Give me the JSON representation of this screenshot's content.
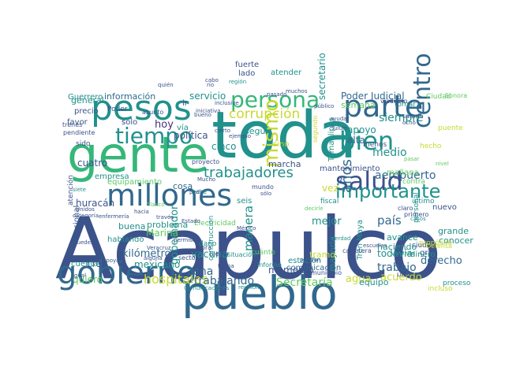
{
  "palette": {
    "navy": "#3b528b",
    "blue": "#31688e",
    "teal": "#21918c",
    "green": "#35b779",
    "lime": "#5ec962",
    "yellow": "#c8d932",
    "purple": "#472c7a",
    "dark": "#440154"
  },
  "words": [
    {
      "text": "Acapulco",
      "color": "navy"
    },
    {
      "text": "toda",
      "color": "teal"
    },
    {
      "text": "pueblo",
      "color": "blue"
    },
    {
      "text": "gente",
      "color": "green"
    },
    {
      "text": "millones",
      "color": "blue"
    },
    {
      "text": "gobierno",
      "color": "blue"
    },
    {
      "text": "parte",
      "color": "blue"
    },
    {
      "text": "pesos",
      "color": "teal"
    },
    {
      "text": "persona",
      "color": "green"
    },
    {
      "text": "salud",
      "color": "navy"
    },
    {
      "text": "centro",
      "color": "blue"
    },
    {
      "text": "tiempo",
      "color": "teal"
    },
    {
      "text": "bien",
      "color": "teal"
    },
    {
      "text": "importante",
      "color": "teal"
    },
    {
      "text": "mismo",
      "color": "yellow"
    },
    {
      "text": "trabajadores",
      "color": "teal"
    },
    {
      "text": "corrupción",
      "color": "yellow"
    },
    {
      "text": "años",
      "color": "blue"
    },
    {
      "text": "hospitales",
      "color": "yellow"
    },
    {
      "text": "Secretaría",
      "color": "lime"
    },
    {
      "text": "kilómetro",
      "color": "blue"
    },
    {
      "text": "trabajando",
      "color": "blue"
    },
    {
      "text": "gobernador",
      "color": "teal"
    },
    {
      "text": "zona",
      "color": "blue"
    },
    {
      "text": "vacuna",
      "color": "teal"
    },
    {
      "text": "manera",
      "color": "teal"
    },
    {
      "text": "mexicano",
      "color": "teal"
    },
    {
      "text": "país",
      "color": "blue"
    },
    {
      "text": "trabajo",
      "color": "blue"
    },
    {
      "text": "acuerdo",
      "color": "yellow"
    },
    {
      "text": "agua",
      "color": "yellow"
    },
    {
      "text": "derecho",
      "color": "blue"
    },
    {
      "text": "todavía",
      "color": "teal"
    },
    {
      "text": "siempre",
      "color": "teal"
    },
    {
      "text": "aeropuerto",
      "color": "blue"
    },
    {
      "text": "medio",
      "color": "teal"
    },
    {
      "text": "apoyo",
      "color": "teal"
    },
    {
      "text": "Poder Judicial",
      "color": "blue"
    },
    {
      "text": "secretario",
      "color": "teal"
    },
    {
      "text": "semana",
      "color": "lime"
    },
    {
      "text": "alta",
      "color": "blue"
    },
    {
      "text": "información",
      "color": "blue"
    },
    {
      "text": "servicio",
      "color": "teal"
    },
    {
      "text": "general",
      "color": "teal"
    },
    {
      "text": "cuatro",
      "color": "navy"
    },
    {
      "text": "hoy",
      "color": "purple"
    },
    {
      "text": "política",
      "color": "navy"
    },
    {
      "text": "cinco",
      "color": "teal"
    },
    {
      "text": "seguir",
      "color": "teal"
    },
    {
      "text": "seis",
      "color": "teal"
    },
    {
      "text": "marcha",
      "color": "navy"
    },
    {
      "text": "mejor",
      "color": "teal"
    },
    {
      "text": "momento",
      "color": "navy"
    },
    {
      "text": "vez",
      "color": "yellow"
    },
    {
      "text": "huracán",
      "color": "navy"
    },
    {
      "text": "buena",
      "color": "teal"
    },
    {
      "text": "creo",
      "color": "navy"
    },
    {
      "text": "quiero",
      "color": "lime"
    },
    {
      "text": "Marina",
      "color": "lime"
    },
    {
      "text": "problema",
      "color": "teal"
    },
    {
      "text": "Guerrero",
      "color": "teal"
    },
    {
      "text": "precio",
      "color": "navy"
    },
    {
      "text": "nuevo",
      "color": "navy"
    },
    {
      "text": "conocer",
      "color": "teal"
    },
    {
      "text": "grande",
      "color": "teal"
    },
    {
      "text": "gran",
      "color": "navy"
    },
    {
      "text": "avance",
      "color": "teal"
    },
    {
      "text": "haciendo",
      "color": "teal"
    },
    {
      "text": "mayoría",
      "color": "teal"
    },
    {
      "text": "equipo",
      "color": "teal"
    },
    {
      "text": "comunicación",
      "color": "blue"
    },
    {
      "text": "estación",
      "color": "teal"
    },
    {
      "text": "tramo",
      "color": "yellow"
    },
    {
      "text": "cosa",
      "color": "blue"
    },
    {
      "text": "empresa",
      "color": "teal"
    },
    {
      "text": "equipamiento",
      "color": "lime"
    },
    {
      "text": "mantenimiento",
      "color": "navy"
    },
    {
      "text": "Tamaulipas",
      "color": "teal"
    },
    {
      "text": "sino",
      "color": "yellow"
    },
    {
      "text": "menos",
      "color": "navy"
    },
    {
      "text": "mañana",
      "color": "lime"
    },
    {
      "text": "personal",
      "color": "teal"
    },
    {
      "text": "Ciudad",
      "color": "lime"
    },
    {
      "text": "daño",
      "color": "teal"
    },
    {
      "text": "cuenta",
      "color": "teal"
    },
    {
      "text": "fuerte",
      "color": "navy"
    },
    {
      "text": "lado",
      "color": "navy"
    },
    {
      "text": "atender",
      "color": "teal"
    },
    {
      "text": "vía",
      "color": "teal"
    },
    {
      "text": "Nacional",
      "color": "navy"
    },
    {
      "text": "atención",
      "color": "navy"
    },
    {
      "text": "favor",
      "color": "navy"
    },
    {
      "text": "solo",
      "color": "navy"
    },
    {
      "text": "ir",
      "color": "navy"
    },
    {
      "text": "Poder",
      "color": "navy"
    },
    {
      "text": "sido",
      "color": "navy"
    },
    {
      "text": "Electricidad",
      "color": "lime"
    },
    {
      "text": "construcción",
      "color": "teal"
    },
    {
      "text": "hablando",
      "color": "teal"
    },
    {
      "text": "Tren Maya",
      "color": "teal"
    },
    {
      "text": "dinero",
      "color": "teal"
    },
    {
      "text": "ciudad",
      "color": "navy"
    },
    {
      "text": "proceso",
      "color": "teal"
    },
    {
      "text": "incluso",
      "color": "yellow"
    },
    {
      "text": "fiscal",
      "color": "teal"
    },
    {
      "text": "puente",
      "color": "yellow"
    },
    {
      "text": "hecho",
      "color": "yellow"
    },
    {
      "text": "último",
      "color": "teal"
    },
    {
      "text": "propósito",
      "color": "yellow"
    },
    {
      "text": "cuánto",
      "color": "lime"
    },
    {
      "text": "contra",
      "color": "lime"
    },
    {
      "text": "tomar",
      "color": "teal"
    },
    {
      "text": "trenes",
      "color": "navy"
    },
    {
      "text": "pendiente",
      "color": "navy"
    },
    {
      "text": "asunto",
      "color": "navy"
    },
    {
      "text": "Sonora",
      "color": "lime"
    },
    {
      "text": "viaducto",
      "color": "navy"
    },
    {
      "text": "nivel",
      "color": "lime"
    },
    {
      "text": "reunión",
      "color": "teal"
    },
    {
      "text": "Comunicaciones",
      "color": "teal"
    },
    {
      "text": "situación",
      "color": "teal"
    },
    {
      "text": "informe",
      "color": "teal"
    },
    {
      "text": "municipio",
      "color": "navy"
    },
    {
      "text": "carretera",
      "color": "navy"
    },
    {
      "text": "público",
      "color": "navy"
    },
    {
      "text": "sector",
      "color": "navy"
    },
    {
      "text": "obra",
      "color": "navy"
    },
    {
      "text": "Unidos",
      "color": "navy"
    },
    {
      "text": "categoría",
      "color": "navy"
    },
    {
      "text": "siete",
      "color": "teal"
    },
    {
      "text": "base",
      "color": "teal"
    },
    {
      "text": "proyecto",
      "color": "navy"
    },
    {
      "text": "ejemplo",
      "color": "navy"
    },
    {
      "text": "región",
      "color": "teal"
    },
    {
      "text": "primero",
      "color": "navy"
    },
    {
      "text": "Defensa",
      "color": "yellow"
    },
    {
      "text": "Tulum",
      "color": "navy"
    },
    {
      "text": "segundo",
      "color": "yellow"
    },
    {
      "text": "llegar",
      "color": "navy"
    },
    {
      "text": "decirle",
      "color": "lime"
    },
    {
      "text": "salario",
      "color": "navy"
    },
    {
      "text": "casos",
      "color": "teal"
    },
    {
      "text": "claro",
      "color": "navy"
    },
    {
      "text": "ocho",
      "color": "navy"
    },
    {
      "text": "mundo",
      "color": "navy"
    },
    {
      "text": "vivienda",
      "color": "teal"
    },
    {
      "text": "cabo",
      "color": "navy"
    },
    {
      "text": "sólo",
      "color": "navy"
    },
    {
      "text": "pasar",
      "color": "lime"
    },
    {
      "text": "verdad",
      "color": "teal"
    },
    {
      "text": "cierto",
      "color": "navy"
    },
    {
      "text": "hacia",
      "color": "navy"
    },
    {
      "text": "México",
      "color": "navy"
    },
    {
      "text": "pueden",
      "color": "navy"
    },
    {
      "text": "apoyar",
      "color": "navy"
    },
    {
      "text": "enfermería",
      "color": "navy"
    },
    {
      "text": "través",
      "color": "navy"
    },
    {
      "text": "permiso",
      "color": "navy"
    },
    {
      "text": "alguna",
      "color": "navy"
    },
    {
      "text": "igual",
      "color": "navy"
    },
    {
      "text": "Veracruz",
      "color": "navy"
    },
    {
      "text": "Mucho",
      "color": "navy"
    },
    {
      "text": "muchos",
      "color": "navy"
    },
    {
      "text": "pedir",
      "color": "navy"
    },
    {
      "text": "bueno",
      "color": "navy"
    },
    {
      "text": "Tlaxco",
      "color": "lime"
    },
    {
      "text": "escuelas",
      "color": "navy"
    },
    {
      "text": "forma",
      "color": "navy"
    },
    {
      "text": "Estado",
      "color": "navy"
    },
    {
      "text": "inclusive",
      "color": "navy"
    },
    {
      "text": "iniciativa",
      "color": "navy"
    },
    {
      "text": "ayudar",
      "color": "navy"
    },
    {
      "text": "Luis",
      "color": "navy"
    },
    {
      "text": "puedan",
      "color": "navy"
    },
    {
      "text": "quién",
      "color": "navy"
    },
    {
      "text": "río",
      "color": "navy"
    },
    {
      "text": "pasado",
      "color": "navy"
    },
    {
      "text": "pues",
      "color": "navy"
    },
    {
      "text": "van",
      "color": "navy"
    },
    {
      "text": "poco",
      "color": "navy"
    },
    {
      "text": "días",
      "color": "navy"
    },
    {
      "text": "nacional",
      "color": "navy"
    }
  ]
}
